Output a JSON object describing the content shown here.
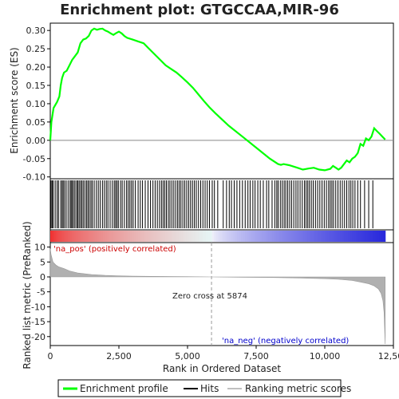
{
  "title": "Enrichment plot: GTGCCAA,MIR-96",
  "colors": {
    "profile": "#00ff00",
    "hits": "#000000",
    "pos_label": "#cc0000",
    "neg_label": "#0000cc",
    "metric_fill": "#b0b0b0",
    "legend_metric_line": "#c0c0c0"
  },
  "chart_data": [
    {
      "type": "line",
      "panel": "enrichment",
      "ylabel": "Enrichment score (ES)",
      "ylim": [
        -0.105,
        0.32
      ],
      "yticks": [
        -0.1,
        -0.05,
        0.0,
        0.05,
        0.1,
        0.15,
        0.2,
        0.25,
        0.3
      ],
      "ytick_labels": [
        "-0.10",
        "-0.05",
        "0.00",
        "0.05",
        "0.10",
        "0.15",
        "0.20",
        "0.25",
        "0.30"
      ],
      "xlim": [
        0,
        12500
      ],
      "series": [
        {
          "x": [
            0,
            40,
            120,
            250,
            330,
            380,
            430,
            500,
            600,
            700,
            800,
            900,
            1000,
            1100,
            1200,
            1300,
            1400,
            1500,
            1600,
            1700,
            1800,
            1900,
            2000,
            2100,
            2200,
            2300,
            2400,
            2500,
            2600,
            2700,
            2800,
            3000,
            3200,
            3400,
            3600,
            3800,
            4000,
            4200,
            4400,
            4600,
            4800,
            5000,
            5200,
            5400,
            5600,
            5800,
            6000,
            6500,
            7000,
            7500,
            8000,
            8300,
            8400,
            8500,
            8700,
            9000,
            9200,
            9400,
            9600,
            9800,
            10000,
            10200,
            10300,
            10400,
            10500,
            10600,
            10700,
            10800,
            10900,
            11000,
            11100,
            11200,
            11300,
            11400,
            11500,
            11600,
            11700,
            11800,
            11900,
            12000,
            12100,
            12200
          ],
          "y": [
            0.0,
            0.05,
            0.088,
            0.105,
            0.12,
            0.15,
            0.17,
            0.185,
            0.19,
            0.205,
            0.22,
            0.23,
            0.24,
            0.265,
            0.275,
            0.278,
            0.285,
            0.3,
            0.305,
            0.302,
            0.304,
            0.305,
            0.3,
            0.297,
            0.292,
            0.288,
            0.293,
            0.297,
            0.292,
            0.285,
            0.28,
            0.275,
            0.27,
            0.265,
            0.25,
            0.235,
            0.22,
            0.205,
            0.195,
            0.185,
            0.172,
            0.158,
            0.143,
            0.125,
            0.107,
            0.09,
            0.075,
            0.04,
            0.01,
            -0.02,
            -0.05,
            -0.065,
            -0.067,
            -0.065,
            -0.068,
            -0.075,
            -0.08,
            -0.077,
            -0.075,
            -0.08,
            -0.082,
            -0.078,
            -0.07,
            -0.075,
            -0.08,
            -0.075,
            -0.065,
            -0.055,
            -0.06,
            -0.05,
            -0.045,
            -0.035,
            -0.01,
            -0.015,
            0.005,
            0.0,
            0.01,
            0.033,
            0.025,
            0.018,
            0.01,
            0.002
          ]
        }
      ]
    },
    {
      "type": "line",
      "panel": "hits",
      "note_hits": "gene set member positions in the ranked list",
      "x": [
        30,
        70,
        110,
        180,
        250,
        300,
        380,
        430,
        470,
        520,
        580,
        650,
        720,
        760,
        800,
        850,
        900,
        960,
        1000,
        1050,
        1100,
        1150,
        1200,
        1260,
        1320,
        1370,
        1420,
        1480,
        1530,
        1600,
        1680,
        1750,
        1820,
        1900,
        1970,
        2040,
        2100,
        2180,
        2260,
        2330,
        2380,
        2430,
        2480,
        2560,
        2620,
        2700,
        2780,
        2840,
        2900,
        2960,
        3020,
        3100,
        3200,
        3280,
        3360,
        3460,
        3560,
        3650,
        3740,
        3820,
        3900,
        3980,
        4050,
        4110,
        4170,
        4230,
        4300,
        4360,
        4430,
        4500,
        4570,
        4640,
        4700,
        4760,
        4830,
        4900,
        4970,
        5040,
        5110,
        5180,
        5250,
        5320,
        5400,
        5480,
        5560,
        5640,
        5720,
        5800,
        5900,
        5980,
        6100,
        6300,
        6420,
        6520,
        6600,
        6700,
        6800,
        6900,
        7000,
        7100,
        7200,
        7280,
        7380,
        7460,
        7560,
        7650,
        7760,
        7880,
        7960,
        8080,
        8180,
        8250,
        8300,
        8380,
        8450,
        8520,
        8580,
        8650,
        8720,
        8790,
        8870,
        8950,
        9020,
        9100,
        9180,
        9260,
        9320,
        9380,
        9440,
        9510,
        9580,
        9660,
        9740,
        9820,
        9900,
        9980,
        10060,
        10140,
        10200,
        10260,
        10320,
        10400,
        10480,
        10560,
        10640,
        10720,
        10800,
        10880,
        10950,
        11020,
        11100,
        11200,
        11300,
        11450,
        11600,
        11750
      ]
    },
    {
      "type": "area",
      "panel": "metric",
      "ylabel": "Ranked list metric (PreRanked)",
      "xlabel": "Rank in Ordered Dataset",
      "ylim": [
        -23,
        11.5
      ],
      "yticks": [
        -20,
        -15,
        -10,
        -5,
        0,
        5,
        10
      ],
      "ytick_labels": [
        "-20",
        "-15",
        "-10",
        "-5",
        "0",
        "5",
        "10"
      ],
      "xlim": [
        0,
        12500
      ],
      "xticks": [
        0,
        2500,
        5000,
        7500,
        10000,
        12500
      ],
      "xtick_labels": [
        "0",
        "2,500",
        "5,000",
        "7,500",
        "10,000",
        "12,500"
      ],
      "zero_cross": 5874,
      "zero_cross_label": "Zero cross at 5874",
      "pos_label": "'na_pos' (positively correlated)",
      "neg_label": "'na_neg' (negatively correlated)",
      "x": [
        0,
        30,
        100,
        200,
        300,
        500,
        700,
        1000,
        1500,
        2000,
        2500,
        3000,
        4000,
        5000,
        5874,
        7000,
        8000,
        9000,
        10000,
        10500,
        11000,
        11300,
        11600,
        11800,
        11950,
        12050,
        12120,
        12160,
        12200
      ],
      "y": [
        9.5,
        7.5,
        5.0,
        4.0,
        3.4,
        2.8,
        2.0,
        1.3,
        0.8,
        0.5,
        0.35,
        0.25,
        0.15,
        0.07,
        0.0,
        -0.1,
        -0.2,
        -0.35,
        -0.6,
        -0.8,
        -1.2,
        -1.7,
        -2.3,
        -3.0,
        -4.0,
        -5.5,
        -8.0,
        -12.0,
        -22.5
      ]
    }
  ],
  "legend": {
    "items": [
      "Enrichment profile",
      "Hits",
      "Ranking metric scores"
    ]
  }
}
